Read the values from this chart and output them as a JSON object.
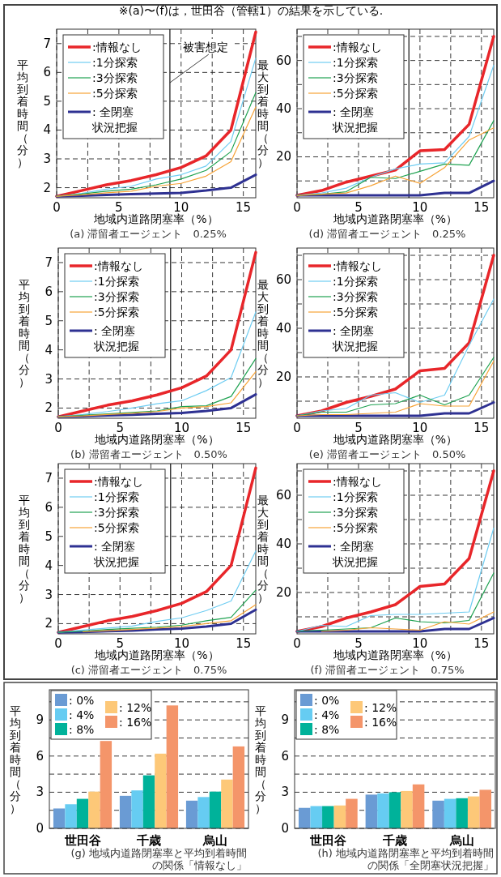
{
  "chart_data": [
    {
      "type": "line",
      "title": "(a) 滞留者エージェント　0.25%",
      "xlabel": "地域内道路閉塞率（%）",
      "ylabel": "平均到着時間（分）",
      "annotations": [
        "※(a)〜(f)は，世田谷（管轄1）の結果を示している."
      ],
      "x": [
        0,
        2,
        4,
        6,
        8,
        10,
        12,
        14,
        16
      ],
      "xlim": [
        0,
        16
      ],
      "xticks": [
        0,
        {
          "value": 2.5,
          "label": null
        },
        5,
        {
          "value": 7.5,
          "label": null
        },
        10,
        {
          "value": 12.5,
          "label": null
        },
        15
      ],
      "ylim": [
        1.65,
        7.5
      ],
      "yticks": [
        2,
        3,
        4,
        5,
        6,
        7
      ],
      "grid": true,
      "legend": "top left",
      "ref_lines": [
        {
          "axis": "x",
          "value": 9.1,
          "label": "被害想定"
        }
      ],
      "series": [
        {
          "name": ":情報なし",
          "color": "#e8262a",
          "values": [
            1.7,
            1.9,
            2.1,
            2.25,
            2.45,
            2.7,
            3.1,
            4.0,
            7.4
          ]
        },
        {
          "name": ":1分探索",
          "color": "#6fcdf2",
          "values": [
            1.7,
            1.8,
            1.95,
            2.05,
            2.3,
            2.45,
            2.75,
            3.6,
            6.5
          ]
        },
        {
          "name": ":3分探索",
          "color": "#1fa251",
          "values": [
            1.7,
            1.78,
            1.88,
            1.95,
            2.1,
            2.3,
            2.6,
            3.25,
            5.3
          ]
        },
        {
          "name": ":5分探索",
          "color": "#f7a336",
          "values": [
            1.7,
            1.75,
            1.82,
            1.88,
            2.05,
            2.15,
            2.4,
            2.9,
            4.8
          ]
        },
        {
          "name": ": 全閉塞状況把握",
          "color": "#2e3192",
          "values": [
            1.7,
            1.72,
            1.75,
            1.78,
            1.8,
            1.82,
            1.9,
            2.0,
            2.45
          ]
        }
      ]
    },
    {
      "type": "line",
      "title": "(d) 滞留者エージェント　0.25%",
      "xlabel": "地域内道路閉塞率（%）",
      "ylabel": "最大到着時間（分）",
      "x": [
        0,
        2,
        4,
        6,
        8,
        10,
        12,
        14,
        16
      ],
      "xlim": [
        0,
        16
      ],
      "xticks": [
        0,
        {
          "value": 2.5,
          "label": null
        },
        5,
        {
          "value": 7.5,
          "label": null
        },
        10,
        {
          "value": 12.5,
          "label": null
        },
        15
      ],
      "ylim": [
        3,
        73
      ],
      "yticks": [
        {
          "value": 10,
          "label": null
        },
        20,
        {
          "value": 30,
          "label": null
        },
        40,
        {
          "value": 50,
          "label": null
        },
        60,
        {
          "value": 70,
          "label": null
        }
      ],
      "grid": true,
      "legend": "top left",
      "ref_lines": [
        {
          "axis": "x",
          "value": 9.1
        }
      ],
      "series": [
        {
          "name": ":情報なし",
          "color": "#e8262a",
          "values": [
            4,
            6,
            9.5,
            12,
            14.5,
            22.5,
            23,
            33.5,
            70
          ]
        },
        {
          "name": ":1分探索",
          "color": "#6fcdf2",
          "values": [
            4,
            5,
            7,
            11.5,
            15,
            17,
            17.5,
            28.5,
            58
          ]
        },
        {
          "name": ":3分探索",
          "color": "#1fa251",
          "values": [
            4,
            4.5,
            5.5,
            11.5,
            11,
            14,
            17,
            16.5,
            35
          ]
        },
        {
          "name": ":5分探索",
          "color": "#f7a336",
          "values": [
            4,
            4.5,
            5,
            8,
            12,
            9,
            15.5,
            27,
            32
          ]
        },
        {
          "name": ": 全閉塞状況把握",
          "color": "#2e3192",
          "values": [
            4,
            4,
            4,
            4,
            4,
            4,
            5,
            5,
            10
          ]
        }
      ]
    },
    {
      "type": "line",
      "title": "(b) 滞留者エージェント　0.50%",
      "xlabel": "地域内道路閉塞率（%）",
      "ylabel": "平均到着時間（分）",
      "x": [
        0,
        2,
        4,
        6,
        8,
        10,
        12,
        14,
        16
      ],
      "xlim": [
        0,
        16
      ],
      "xticks": [
        0,
        {
          "value": 2.5,
          "label": null
        },
        5,
        {
          "value": 7.5,
          "label": null
        },
        10,
        {
          "value": 12.5,
          "label": null
        },
        15
      ],
      "ylim": [
        1.65,
        7.5
      ],
      "yticks": [
        2,
        3,
        4,
        5,
        6,
        7
      ],
      "grid": true,
      "legend": "top left",
      "ref_lines": [
        {
          "axis": "x",
          "value": 9.1
        }
      ],
      "series": [
        {
          "name": ":情報なし",
          "color": "#e8262a",
          "values": [
            1.7,
            1.9,
            2.1,
            2.25,
            2.45,
            2.7,
            3.1,
            4.0,
            7.35
          ]
        },
        {
          "name": ":1分探索",
          "color": "#6fcdf2",
          "values": [
            1.7,
            1.78,
            1.88,
            2.0,
            2.15,
            2.25,
            2.6,
            3.05,
            5.3
          ]
        },
        {
          "name": ":3分探索",
          "color": "#1fa251",
          "values": [
            1.7,
            1.75,
            1.8,
            1.85,
            1.9,
            2.05,
            2.08,
            2.4,
            3.7
          ]
        },
        {
          "name": ":5分探索",
          "color": "#f7a336",
          "values": [
            1.7,
            1.73,
            1.78,
            1.82,
            1.88,
            2.0,
            2.05,
            2.18,
            3.25
          ]
        },
        {
          "name": ": 全閉塞状況把握",
          "color": "#2e3192",
          "values": [
            1.7,
            1.72,
            1.75,
            1.77,
            1.8,
            1.83,
            1.9,
            2.0,
            2.47
          ]
        }
      ]
    },
    {
      "type": "line",
      "title": "(e) 滞留者エージェント　0.50%",
      "xlabel": "地域内道路閉塞率（%）",
      "ylabel": "最大到着時間（分）",
      "x": [
        0,
        2,
        4,
        6,
        8,
        10,
        12,
        14,
        16
      ],
      "xlim": [
        0,
        16
      ],
      "xticks": [
        0,
        {
          "value": 2.5,
          "label": null
        },
        5,
        {
          "value": 7.5,
          "label": null
        },
        10,
        {
          "value": 12.5,
          "label": null
        },
        15
      ],
      "ylim": [
        3,
        73
      ],
      "yticks": [
        {
          "value": 10,
          "label": null
        },
        20,
        {
          "value": 30,
          "label": null
        },
        40,
        {
          "value": 50,
          "label": null
        },
        60,
        {
          "value": 70,
          "label": null
        }
      ],
      "grid": true,
      "legend": "top left",
      "ref_lines": [
        {
          "axis": "x",
          "value": 9.1
        }
      ],
      "series": [
        {
          "name": ":情報なし",
          "color": "#e8262a",
          "values": [
            4,
            6,
            9.5,
            12,
            15,
            22.5,
            23.5,
            34,
            70
          ]
        },
        {
          "name": ":1分探索",
          "color": "#6fcdf2",
          "values": [
            4,
            6,
            7,
            12.5,
            13.5,
            9.5,
            12.5,
            33,
            52
          ]
        },
        {
          "name": ":3分探索",
          "color": "#1fa251",
          "values": [
            4,
            5.5,
            5.5,
            8.5,
            9,
            12.5,
            8.5,
            12.5,
            28
          ]
        },
        {
          "name": ":5分探索",
          "color": "#f7a336",
          "values": [
            4,
            4.5,
            4.5,
            5,
            5.5,
            9,
            8,
            8,
            26.5
          ]
        },
        {
          "name": ": 全閉塞状況把握",
          "color": "#2e3192",
          "values": [
            4,
            4,
            4,
            4,
            4,
            4,
            5,
            5,
            9.5
          ]
        }
      ]
    },
    {
      "type": "line",
      "title": "(c) 滞留者エージェント　0.75%",
      "xlabel": "地域内道路閉塞率（%）",
      "ylabel": "平均到着時間（分）",
      "x": [
        0,
        2,
        4,
        6,
        8,
        10,
        12,
        14,
        16
      ],
      "xlim": [
        0,
        16
      ],
      "xticks": [
        0,
        {
          "value": 2.5,
          "label": null
        },
        5,
        {
          "value": 7.5,
          "label": null
        },
        10,
        {
          "value": 12.5,
          "label": null
        },
        15
      ],
      "ylim": [
        1.65,
        7.5
      ],
      "yticks": [
        2,
        3,
        4,
        5,
        6,
        7
      ],
      "grid": true,
      "legend": "top left",
      "ref_lines": [
        {
          "axis": "x",
          "value": 9.1
        }
      ],
      "series": [
        {
          "name": ":情報なし",
          "color": "#e8262a",
          "values": [
            1.7,
            1.9,
            2.1,
            2.25,
            2.45,
            2.7,
            3.1,
            4.0,
            7.35
          ]
        },
        {
          "name": ":1分探索",
          "color": "#6fcdf2",
          "values": [
            1.7,
            1.78,
            1.85,
            1.92,
            2.08,
            2.2,
            2.45,
            2.78,
            4.5
          ]
        },
        {
          "name": ":3分探索",
          "color": "#1fa251",
          "values": [
            1.7,
            1.74,
            1.8,
            1.84,
            1.88,
            1.95,
            2.1,
            2.22,
            3.15
          ]
        },
        {
          "name": ":5分探索",
          "color": "#f7a336",
          "values": [
            null,
            1.72,
            1.76,
            1.8,
            1.85,
            1.9,
            2.0,
            2.1,
            2.65
          ]
        },
        {
          "name": ": 全閉塞状況把握",
          "color": "#2e3192",
          "values": [
            1.7,
            1.71,
            1.74,
            1.76,
            1.8,
            1.83,
            1.9,
            2.0,
            2.48
          ]
        }
      ]
    },
    {
      "type": "line",
      "title": "(f) 滞留者エージェント　0.75%",
      "xlabel": "地域内道路閉塞率（%）",
      "ylabel": "最大到着時間（分）",
      "x": [
        0,
        2,
        4,
        6,
        8,
        10,
        12,
        14,
        16
      ],
      "xlim": [
        0,
        16
      ],
      "xticks": [
        0,
        {
          "value": 2.5,
          "label": null
        },
        5,
        {
          "value": 7.5,
          "label": null
        },
        10,
        {
          "value": 12.5,
          "label": null
        },
        15
      ],
      "ylim": [
        3,
        73
      ],
      "yticks": [
        {
          "value": 10,
          "label": null
        },
        20,
        {
          "value": 30,
          "label": null
        },
        40,
        {
          "value": 50,
          "label": null
        },
        60,
        {
          "value": 70,
          "label": null
        }
      ],
      "grid": true,
      "legend": "top left",
      "ref_lines": [
        {
          "axis": "x",
          "value": 9.1
        }
      ],
      "series": [
        {
          "name": ":情報なし",
          "color": "#e8262a",
          "values": [
            4,
            6,
            9.5,
            12,
            15,
            22.5,
            23.5,
            34,
            70
          ]
        },
        {
          "name": ":1分探索",
          "color": "#6fcdf2",
          "values": [
            4,
            6.5,
            6,
            10.5,
            11,
            11,
            11.5,
            12,
            46.5
          ]
        },
        {
          "name": ":3分探索",
          "color": "#1fa251",
          "values": [
            4,
            4.5,
            5,
            5.5,
            9.5,
            8,
            7.5,
            8.5,
            28
          ]
        },
        {
          "name": ":5分探索",
          "color": "#f7a336",
          "values": [
            null,
            4,
            4.5,
            5.5,
            5,
            4.5,
            8,
            7,
            12
          ]
        },
        {
          "name": ": 全閉塞状況把握",
          "color": "#2e3192",
          "values": [
            4,
            4,
            4,
            4,
            4,
            4,
            5,
            5,
            9.5
          ]
        }
      ]
    },
    {
      "type": "bar",
      "title": "(g) 地域内道路閉塞率と平均到着時間の関係「情報なし」",
      "ylabel": "平均到着時間（分）",
      "categories": [
        "世田谷",
        "千歳",
        "烏山"
      ],
      "ylim": [
        0,
        11.5
      ],
      "yticks": [
        0,
        {
          "value": 1.5,
          "label": null
        },
        3,
        {
          "value": 4.5,
          "label": null
        },
        6,
        {
          "value": 7.5,
          "label": null
        },
        9,
        {
          "value": 10.5,
          "label": null
        }
      ],
      "grid": "y",
      "legend": "top left",
      "series": [
        {
          "name": ": 0%",
          "color": "#6a9bd4",
          "values": [
            1.65,
            2.7,
            2.3
          ]
        },
        {
          "name": ": 4%",
          "color": "#66ccf2",
          "values": [
            2.0,
            3.15,
            2.6
          ]
        },
        {
          "name": ": 8%",
          "color": "#00b29a",
          "values": [
            2.45,
            4.4,
            3.05
          ]
        },
        {
          "name": ": 12%",
          "color": "#fdc878",
          "values": [
            3.05,
            6.2,
            4.05
          ]
        },
        {
          "name": ": 16%",
          "color": "#f4956a",
          "values": [
            7.25,
            10.2,
            6.8
          ]
        }
      ]
    },
    {
      "type": "bar",
      "title": "(h) 地域内道路閉塞率と平均到着時間の関係「全閉塞状況把握」",
      "ylabel": "平均到着時間（分）",
      "categories": [
        "世田谷",
        "千歳",
        "烏山"
      ],
      "ylim": [
        0,
        11.5
      ],
      "yticks": [
        0,
        {
          "value": 1.5,
          "label": null
        },
        3,
        {
          "value": 4.5,
          "label": null
        },
        6,
        {
          "value": 7.5,
          "label": null
        },
        9,
        {
          "value": 10.5,
          "label": null
        }
      ],
      "grid": "y",
      "legend": "top left",
      "series": [
        {
          "name": ": 0%",
          "color": "#6a9bd4",
          "values": [
            1.7,
            2.8,
            2.3
          ]
        },
        {
          "name": ": 4%",
          "color": "#66ccf2",
          "values": [
            1.85,
            2.9,
            2.45
          ]
        },
        {
          "name": ": 8%",
          "color": "#00b29a",
          "values": [
            1.85,
            3.0,
            2.5
          ]
        },
        {
          "name": ": 12%",
          "color": "#fdc878",
          "values": [
            1.9,
            3.1,
            2.65
          ]
        },
        {
          "name": ": 16%",
          "color": "#f4956a",
          "values": [
            2.45,
            3.65,
            3.2
          ]
        }
      ]
    }
  ]
}
